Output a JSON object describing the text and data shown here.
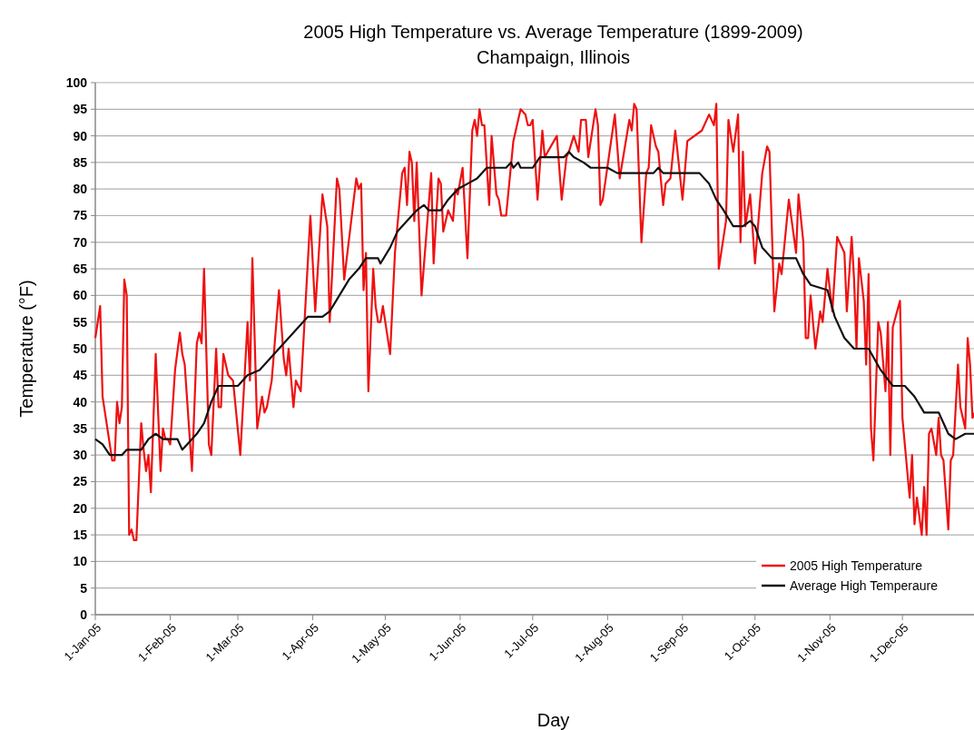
{
  "chart_data": {
    "type": "line",
    "title": "2005 High Temperature vs. Average Temperature (1899-2009)",
    "subtitle": "Champaign, Illinois",
    "xlabel": "Day",
    "ylabel": "Temperature (°F)",
    "xlim": [
      "2005-01-01",
      "2005-12-31"
    ],
    "xticks": [
      {
        "value": "2005-01-01",
        "label": "1-Jan-05"
      },
      {
        "value": "2005-02-01",
        "label": "1-Feb-05"
      },
      {
        "value": "2005-03-01",
        "label": "1-Mar-05"
      },
      {
        "value": "2005-04-01",
        "label": "1-Apr-05"
      },
      {
        "value": "2005-05-01",
        "label": "1-May-05"
      },
      {
        "value": "2005-06-01",
        "label": "1-Jun-05"
      },
      {
        "value": "2005-07-01",
        "label": "1-Jul-05"
      },
      {
        "value": "2005-08-01",
        "label": "1-Aug-05"
      },
      {
        "value": "2005-09-01",
        "label": "1-Sep-05"
      },
      {
        "value": "2005-10-01",
        "label": "1-Oct-05"
      },
      {
        "value": "2005-11-01",
        "label": "1-Nov-05"
      },
      {
        "value": "2005-12-01",
        "label": "1-Dec-05"
      }
    ],
    "ylim": [
      0,
      100
    ],
    "yticks": [
      0,
      5,
      10,
      15,
      20,
      25,
      30,
      35,
      40,
      45,
      50,
      55,
      60,
      65,
      70,
      75,
      80,
      85,
      90,
      95,
      100
    ],
    "grid": "y",
    "legend": "bottom right",
    "marker": "none",
    "line_style": "solid",
    "series": [
      {
        "name": "2005 High Temperature",
        "color": "#ee1111",
        "x": [
          "2005-01-01",
          "2005-01-03",
          "2005-01-04",
          "2005-01-05",
          "2005-01-08",
          "2005-01-09",
          "2005-01-10",
          "2005-01-11",
          "2005-01-12",
          "2005-01-13",
          "2005-01-14",
          "2005-01-15",
          "2005-01-16",
          "2005-01-17",
          "2005-01-18",
          "2005-01-20",
          "2005-01-21",
          "2005-01-22",
          "2005-01-23",
          "2005-01-24",
          "2005-01-26",
          "2005-01-28",
          "2005-01-29",
          "2005-01-30",
          "2005-01-31",
          "2005-02-01",
          "2005-02-03",
          "2005-02-05",
          "2005-02-06",
          "2005-02-07",
          "2005-02-10",
          "2005-02-12",
          "2005-02-13",
          "2005-02-14",
          "2005-02-15",
          "2005-02-17",
          "2005-02-18",
          "2005-02-20",
          "2005-02-21",
          "2005-02-22",
          "2005-02-23",
          "2005-02-25",
          "2005-02-27",
          "2005-03-02",
          "2005-03-05",
          "2005-03-06",
          "2005-03-07",
          "2005-03-09",
          "2005-03-11",
          "2005-03-12",
          "2005-03-13",
          "2005-03-15",
          "2005-03-18",
          "2005-03-20",
          "2005-03-21",
          "2005-03-22",
          "2005-03-24",
          "2005-03-25",
          "2005-03-27",
          "2005-03-31",
          "2005-04-02",
          "2005-04-05",
          "2005-04-07",
          "2005-04-08",
          "2005-04-11",
          "2005-04-12",
          "2005-04-14",
          "2005-04-19",
          "2005-04-20",
          "2005-04-21",
          "2005-04-22",
          "2005-04-23",
          "2005-04-24",
          "2005-04-26",
          "2005-04-27",
          "2005-04-28",
          "2005-04-29",
          "2005-04-30",
          "2005-05-01",
          "2005-05-03",
          "2005-05-05",
          "2005-05-08",
          "2005-05-09",
          "2005-05-10",
          "2005-05-11",
          "2005-05-12",
          "2005-05-13",
          "2005-05-14",
          "2005-05-16",
          "2005-05-20",
          "2005-05-21",
          "2005-05-23",
          "2005-05-24",
          "2005-05-25",
          "2005-05-27",
          "2005-05-29",
          "2005-05-30",
          "2005-05-31",
          "2005-06-02",
          "2005-06-04",
          "2005-06-06",
          "2005-06-07",
          "2005-06-08",
          "2005-06-09",
          "2005-06-10",
          "2005-06-11",
          "2005-06-13",
          "2005-06-14",
          "2005-06-16",
          "2005-06-17",
          "2005-06-18",
          "2005-06-20",
          "2005-06-23",
          "2005-06-26",
          "2005-06-28",
          "2005-06-29",
          "2005-06-30",
          "2005-07-01",
          "2005-07-03",
          "2005-07-05",
          "2005-07-06",
          "2005-07-11",
          "2005-07-13",
          "2005-07-15",
          "2005-07-16",
          "2005-07-18",
          "2005-07-20",
          "2005-07-21",
          "2005-07-23",
          "2005-07-24",
          "2005-07-27",
          "2005-07-28",
          "2005-07-29",
          "2005-07-30",
          "2005-08-04",
          "2005-08-06",
          "2005-08-10",
          "2005-08-11",
          "2005-08-12",
          "2005-08-13",
          "2005-08-15",
          "2005-08-17",
          "2005-08-18",
          "2005-08-19",
          "2005-08-21",
          "2005-08-22",
          "2005-08-24",
          "2005-08-25",
          "2005-08-27",
          "2005-08-29",
          "2005-09-01",
          "2005-09-03",
          "2005-09-09",
          "2005-09-12",
          "2005-09-14",
          "2005-09-15",
          "2005-09-16",
          "2005-09-19",
          "2005-09-20",
          "2005-09-22",
          "2005-09-24",
          "2005-09-25",
          "2005-09-26",
          "2005-09-27",
          "2005-09-29",
          "2005-10-01",
          "2005-10-04",
          "2005-10-06",
          "2005-10-07",
          "2005-10-09",
          "2005-10-11",
          "2005-10-12",
          "2005-10-15",
          "2005-10-18",
          "2005-10-19",
          "2005-10-21",
          "2005-10-22",
          "2005-10-23",
          "2005-10-24",
          "2005-10-26",
          "2005-10-28",
          "2005-10-29",
          "2005-10-31",
          "2005-11-02",
          "2005-11-04",
          "2005-11-07",
          "2005-11-08",
          "2005-11-10",
          "2005-11-11",
          "2005-11-12",
          "2005-11-13",
          "2005-11-15",
          "2005-11-16",
          "2005-11-17",
          "2005-11-18",
          "2005-11-19",
          "2005-11-21",
          "2005-11-22",
          "2005-11-24",
          "2005-11-25",
          "2005-11-26",
          "2005-11-27",
          "2005-11-30",
          "2005-12-01",
          "2005-12-02",
          "2005-12-04",
          "2005-12-05",
          "2005-12-06",
          "2005-12-07",
          "2005-12-09",
          "2005-12-10",
          "2005-12-11",
          "2005-12-12",
          "2005-12-13",
          "2005-12-15",
          "2005-12-16",
          "2005-12-17",
          "2005-12-18",
          "2005-12-20",
          "2005-12-21",
          "2005-12-22",
          "2005-12-24",
          "2005-12-25",
          "2005-12-27",
          "2005-12-28",
          "2005-12-29",
          "2005-12-30",
          "2005-12-31"
        ],
        "values": [
          52,
          58,
          41,
          38,
          29,
          29,
          40,
          36,
          39,
          63,
          60,
          15,
          16,
          14,
          14,
          36,
          31,
          27,
          30,
          23,
          49,
          27,
          35,
          33,
          33,
          32,
          46,
          53,
          49,
          47,
          27,
          51,
          53,
          51,
          65,
          32,
          30,
          50,
          39,
          39,
          49,
          45,
          44,
          30,
          55,
          44,
          67,
          35,
          41,
          38,
          39,
          44,
          61,
          48,
          45,
          50,
          39,
          44,
          42,
          75,
          57,
          79,
          73,
          55,
          82,
          80,
          63,
          82,
          80,
          81,
          61,
          68,
          42,
          65,
          58,
          55,
          55,
          58,
          55,
          49,
          68,
          83,
          84,
          77,
          87,
          85,
          74,
          85,
          60,
          83,
          66,
          82,
          81,
          72,
          76,
          74,
          80,
          79,
          84,
          67,
          91,
          93,
          90,
          95,
          92,
          92,
          77,
          90,
          79,
          78,
          75,
          75,
          89,
          95,
          94,
          92,
          92,
          93,
          78,
          91,
          86,
          90,
          78,
          86,
          87,
          90,
          87,
          93,
          93,
          86,
          95,
          92,
          77,
          78,
          94,
          82,
          93,
          91,
          96,
          95,
          70,
          83,
          84,
          92,
          88,
          87,
          77,
          81,
          82,
          91,
          78,
          89,
          91,
          94,
          92,
          96,
          65,
          74,
          93,
          87,
          94,
          70,
          87,
          73,
          79,
          66,
          83,
          88,
          87,
          57,
          66,
          64,
          78,
          68,
          79,
          70,
          52,
          52,
          60,
          50,
          57,
          55,
          65,
          57,
          71,
          68,
          57,
          71,
          63,
          50,
          67,
          59,
          47,
          64,
          35,
          29,
          55,
          53,
          42,
          55,
          30,
          54,
          59,
          37,
          32,
          22,
          30,
          17,
          22,
          15,
          24,
          15,
          34,
          35,
          30,
          37,
          30,
          29,
          16,
          29,
          30,
          47,
          39,
          35,
          52,
          47,
          37,
          38
        ]
      },
      {
        "name": "Average High Temperaure",
        "color": "#111111",
        "x": [
          "2005-01-01",
          "2005-01-04",
          "2005-01-07",
          "2005-01-12",
          "2005-01-14",
          "2005-01-20",
          "2005-01-23",
          "2005-01-26",
          "2005-01-29",
          "2005-02-04",
          "2005-02-06",
          "2005-02-08",
          "2005-02-12",
          "2005-02-15",
          "2005-02-18",
          "2005-02-21",
          "2005-03-01",
          "2005-03-05",
          "2005-03-10",
          "2005-03-14",
          "2005-03-18",
          "2005-03-22",
          "2005-03-26",
          "2005-03-30",
          "2005-04-05",
          "2005-04-08",
          "2005-04-12",
          "2005-04-16",
          "2005-04-20",
          "2005-04-23",
          "2005-04-28",
          "2005-04-29",
          "2005-05-03",
          "2005-05-06",
          "2005-05-10",
          "2005-05-14",
          "2005-05-17",
          "2005-05-19",
          "2005-05-24",
          "2005-05-27",
          "2005-05-31",
          "2005-06-04",
          "2005-06-08",
          "2005-06-12",
          "2005-06-20",
          "2005-06-22",
          "2005-06-23",
          "2005-06-25",
          "2005-06-26",
          "2005-07-01",
          "2005-07-04",
          "2005-07-14",
          "2005-07-16",
          "2005-07-18",
          "2005-07-22",
          "2005-07-25",
          "2005-08-01",
          "2005-08-05",
          "2005-08-20",
          "2005-08-22",
          "2005-08-24",
          "2005-09-08",
          "2005-09-12",
          "2005-09-15",
          "2005-09-18",
          "2005-09-22",
          "2005-09-26",
          "2005-09-29",
          "2005-10-01",
          "2005-10-04",
          "2005-10-08",
          "2005-10-18",
          "2005-10-21",
          "2005-10-24",
          "2005-10-31",
          "2005-11-03",
          "2005-11-07",
          "2005-11-11",
          "2005-11-17",
          "2005-11-22",
          "2005-11-27",
          "2005-12-02",
          "2005-12-06",
          "2005-12-10",
          "2005-12-16",
          "2005-12-20",
          "2005-12-23",
          "2005-12-27",
          "2005-12-31"
        ],
        "values": [
          33,
          32,
          30,
          30,
          31,
          31,
          33,
          34,
          33,
          33,
          31,
          32,
          34,
          36,
          40,
          43,
          43,
          45,
          46,
          48,
          50,
          52,
          54,
          56,
          56,
          57,
          60,
          63,
          65,
          67,
          67,
          66,
          69,
          72,
          74,
          76,
          77,
          76,
          76,
          78,
          80,
          81,
          82,
          84,
          84,
          85,
          84,
          85,
          84,
          84,
          86,
          86,
          87,
          86,
          85,
          84,
          84,
          83,
          83,
          84,
          83,
          83,
          81,
          78,
          76,
          73,
          73,
          74,
          73,
          69,
          67,
          67,
          64,
          62,
          61,
          56,
          52,
          50,
          50,
          46,
          43,
          43,
          41,
          38,
          38,
          34,
          33,
          34,
          34
        ]
      }
    ]
  }
}
